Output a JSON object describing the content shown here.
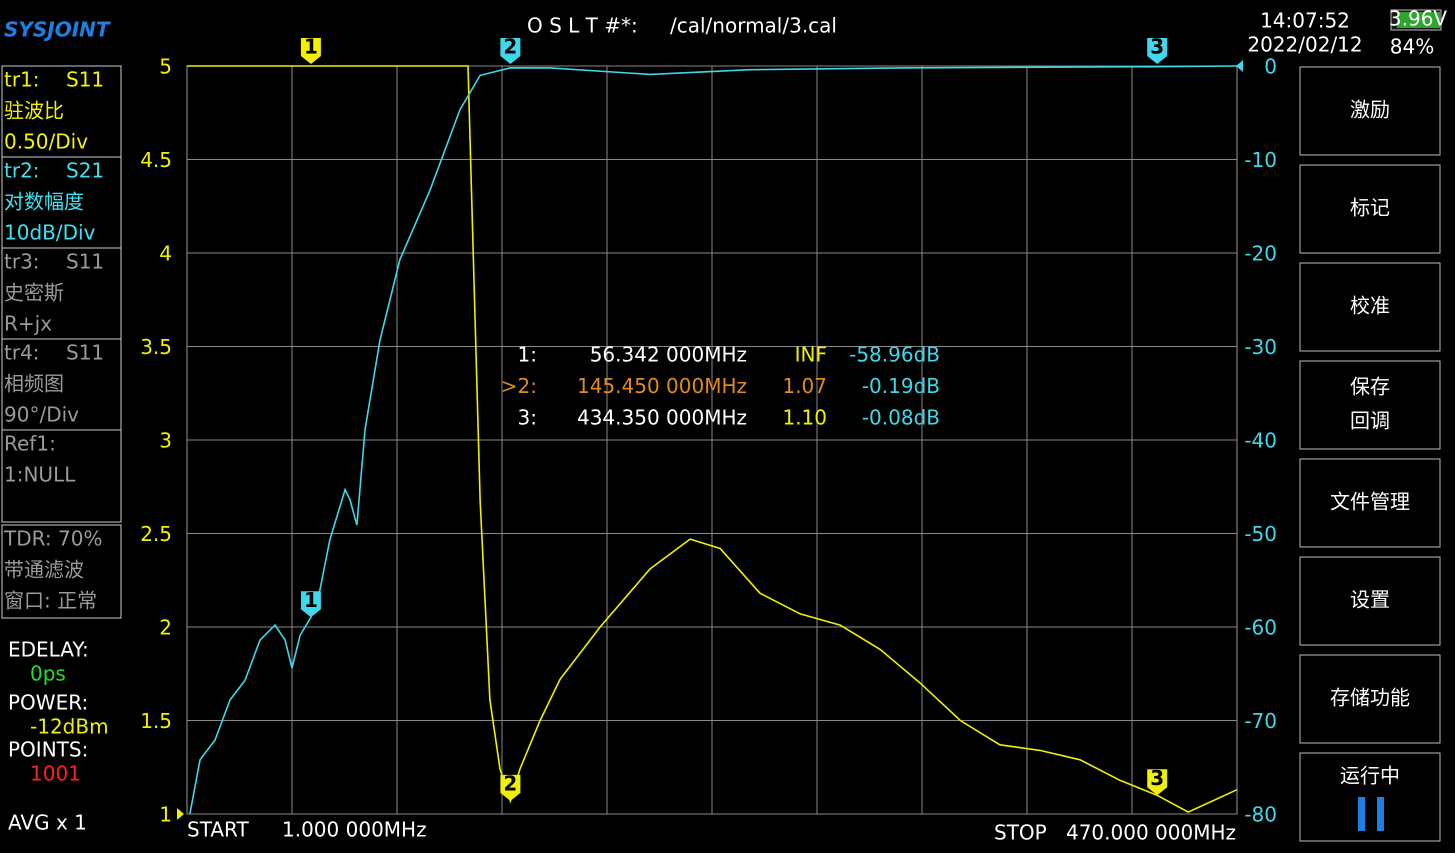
{
  "header": {
    "logo": "SYSJOINT",
    "cal_label": "O S L T #*:",
    "cal_file": "/cal/normal/3.cal",
    "time": "14:07:52",
    "date": "2022/02/12",
    "battery_voltage": "3.96V",
    "battery_percent": "84%"
  },
  "traces_panel": [
    {
      "id": "tr1:",
      "param": "S11",
      "format": "驻波比",
      "scale": "0.50/Div",
      "color": "#f4f400"
    },
    {
      "id": "tr2:",
      "param": "S21",
      "format": "对数幅度",
      "scale": "10dB/Div",
      "color": "#3fe0f0"
    },
    {
      "id": "tr3:",
      "param": "S11",
      "format": "史密斯",
      "scale": "R+jx",
      "color": "#9a9a9a"
    },
    {
      "id": "tr4:",
      "param": "S11",
      "format": "相频图",
      "scale": "90°/Div",
      "color": "#9a9a9a"
    }
  ],
  "ref": {
    "label": "Ref1:",
    "value": "1:NULL"
  },
  "tdr": [
    "TDR: 70%",
    "带通滤波",
    "窗口: 正常"
  ],
  "status": {
    "edelay_label": "EDELAY:",
    "edelay": "0ps",
    "power_label": "POWER:",
    "power": "-12dBm",
    "points_label": "POINTS:",
    "points": "1001",
    "avg": "AVG x 1"
  },
  "menu": [
    [
      "激励"
    ],
    [
      "标记"
    ],
    [
      "校准"
    ],
    [
      "保存",
      "回调"
    ],
    [
      "文件管理"
    ],
    [
      "设置"
    ],
    [
      "存储功能"
    ],
    [
      "运行中"
    ]
  ],
  "chart_data": {
    "type": "line",
    "xlim": [
      1,
      470
    ],
    "ylim": [
      1,
      5
    ],
    "yticks": [
      5,
      4.5,
      4,
      3.5,
      3,
      2.5,
      2,
      1.5,
      1
    ],
    "y2lim": [
      -80,
      0
    ],
    "y2ticks": [
      0,
      -10,
      -20,
      -30,
      -40,
      -50,
      -60,
      -70,
      -80
    ],
    "start_label": "START",
    "start": "1.000 000MHz",
    "stop_label": "STOP",
    "stop": "470.000 000MHz",
    "series": [
      {
        "color": "#f0f000",
        "x": [
          1,
          126.5,
          131.9,
          136.3,
          140.8,
          145.45,
          149.7,
          158.7,
          167.6,
          185.5,
          207.8,
          225.7,
          239.1,
          257,
          274.9,
          292.7,
          310.6,
          328.5,
          346.4,
          364.1,
          382,
          399.9,
          417.7,
          434.35,
          448.2,
          470
        ],
        "values": [
          5,
          5,
          2.68,
          1.61,
          1.24,
          1.07,
          1.24,
          1.5,
          1.72,
          2,
          2.31,
          2.47,
          2.42,
          2.18,
          2.07,
          2.01,
          1.88,
          1.7,
          1.5,
          1.37,
          1.34,
          1.29,
          1.18,
          1.1,
          1.01,
          1.13
        ]
      },
      {
        "color": "#3fd8ea",
        "axis": "y2",
        "x": [
          2.3,
          6.8,
          13.5,
          20.2,
          26.9,
          33.6,
          40.3,
          44.8,
          47.9,
          51.5,
          56.342,
          60.4,
          64.8,
          71.6,
          73.8,
          76.9,
          80.5,
          87.2,
          96.1,
          109.5,
          122.9,
          131.9,
          145.45,
          163.1,
          207.8,
          252.5,
          319.5,
          434.35,
          470
        ],
        "values": [
          -80,
          -74.2,
          -72.1,
          -67.8,
          -65.7,
          -61.4,
          -59.8,
          -61.4,
          -64.4,
          -60.9,
          -58.96,
          -56,
          -50.7,
          -45.3,
          -46.4,
          -49.1,
          -38.9,
          -29.3,
          -20.7,
          -13.3,
          -4.7,
          -1,
          -0.19,
          -0.2,
          -0.9,
          -0.4,
          -0.2,
          -0.08,
          0
        ]
      }
    ],
    "markers": [
      {
        "flag": "1",
        "label": "1:",
        "freq": 56.342,
        "freq_text": "56.342 000MHz",
        "swr": null,
        "swr_text": "INF",
        "db": -58.96,
        "db_text": "-58.96dB"
      },
      {
        "flag": "2",
        "label": ">2:",
        "freq": 145.45,
        "freq_text": "145.450 000MHz",
        "swr": 1.07,
        "swr_text": "1.07",
        "db": -0.19,
        "db_text": "-0.19dB"
      },
      {
        "flag": "3",
        "label": "3:",
        "freq": 434.35,
        "freq_text": "434.350 000MHz",
        "swr": 1.1,
        "swr_text": "1.10",
        "db": -0.08,
        "db_text": "-0.08dB"
      }
    ]
  }
}
